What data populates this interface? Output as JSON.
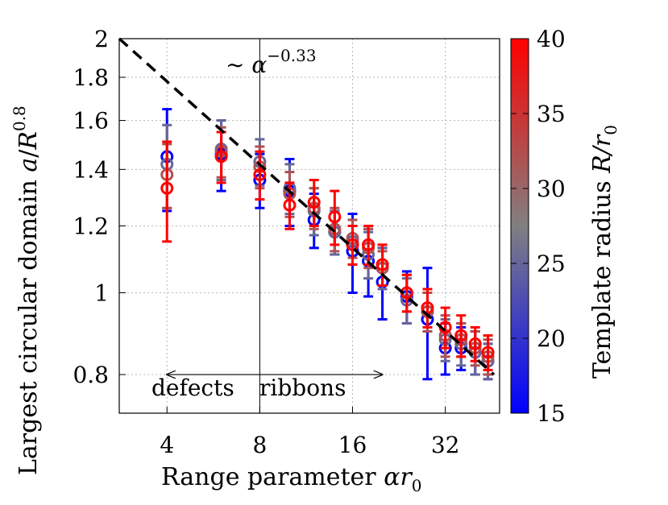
{
  "chart_data": {
    "type": "scatter",
    "xlabel": "Range parameter αr₀",
    "ylabel": "Largest circular domain a/R^0.8",
    "x_scale": "log2",
    "y_scale": "log",
    "xlim": [
      2.8,
      48
    ],
    "ylim": [
      0.72,
      2.0
    ],
    "xticks": [
      4,
      8,
      16,
      32
    ],
    "yticks": [
      0.8,
      1,
      1.2,
      1.4,
      1.6,
      1.8,
      2
    ],
    "grid": true,
    "fit_line": {
      "label": "~ α^−0.33",
      "exponent": -0.33,
      "x": [
        2.8,
        46
      ],
      "y": [
        2.0,
        0.8
      ]
    },
    "vertical_line": {
      "x": 8
    },
    "regions": [
      {
        "label": "defects",
        "arrow_from": 8,
        "arrow_to": 4,
        "y": 0.8
      },
      {
        "label": "ribbons",
        "arrow_from": 8,
        "arrow_to": 20,
        "y": 0.8
      }
    ],
    "colorbar": {
      "label": "Template radius R/r₀",
      "min": 15,
      "max": 40,
      "ticks": [
        15,
        20,
        25,
        30,
        35,
        40
      ],
      "colors": [
        "#0000ff",
        "#808080",
        "#ff0000"
      ]
    },
    "series": [
      {
        "R": 15,
        "x": [
          4,
          6,
          8,
          10,
          12,
          14,
          16,
          18,
          20,
          24,
          28,
          32,
          36,
          40,
          44
        ],
        "y": [
          1.45,
          1.46,
          1.36,
          1.32,
          1.22,
          1.18,
          1.12,
          1.09,
          1.03,
          0.99,
          0.93,
          0.86,
          0.86,
          0.85,
          0.83
        ],
        "err": [
          0.2,
          0.14,
          0.1,
          0.12,
          0.09,
          0.07,
          0.12,
          0.1,
          0.1,
          0.07,
          0.14,
          0.06,
          0.05,
          0.05,
          0.04
        ]
      },
      {
        "R": 25,
        "x": [
          4,
          6,
          8,
          10,
          12,
          14,
          16,
          18,
          20,
          24,
          28,
          32,
          36,
          40,
          44
        ],
        "y": [
          1.42,
          1.48,
          1.43,
          1.33,
          1.25,
          1.18,
          1.15,
          1.11,
          1.07,
          0.98,
          0.95,
          0.88,
          0.87,
          0.85,
          0.83
        ],
        "err": [
          0.16,
          0.12,
          0.09,
          0.09,
          0.08,
          0.07,
          0.07,
          0.07,
          0.06,
          0.06,
          0.05,
          0.05,
          0.05,
          0.05,
          0.04
        ]
      },
      {
        "R": 32,
        "x": [
          4,
          6,
          8,
          10,
          12,
          14,
          16,
          18,
          20,
          24,
          28,
          32,
          36,
          40,
          44
        ],
        "y": [
          1.38,
          1.47,
          1.41,
          1.31,
          1.26,
          1.19,
          1.16,
          1.13,
          1.07,
          1.0,
          0.95,
          0.89,
          0.88,
          0.86,
          0.84
        ],
        "err": [
          0.12,
          0.1,
          0.08,
          0.08,
          0.07,
          0.07,
          0.06,
          0.06,
          0.05,
          0.05,
          0.05,
          0.05,
          0.04,
          0.04,
          0.04
        ]
      },
      {
        "R": 40,
        "x": [
          4,
          6,
          8,
          10,
          12,
          14,
          16,
          18,
          20,
          24,
          28,
          32,
          36,
          40,
          44
        ],
        "y": [
          1.33,
          1.45,
          1.38,
          1.27,
          1.28,
          1.23,
          1.14,
          1.14,
          1.08,
          1.0,
          0.96,
          0.91,
          0.89,
          0.87,
          0.85
        ],
        "err": [
          0.18,
          0.1,
          0.09,
          0.08,
          0.08,
          0.09,
          0.06,
          0.06,
          0.06,
          0.05,
          0.05,
          0.05,
          0.05,
          0.04,
          0.04
        ]
      }
    ]
  },
  "texts": {
    "ylabel_main": "Largest circular domain ",
    "ylabel_a": "a",
    "ylabel_slash": "/",
    "ylabel_R": "R",
    "ylabel_exp": "0.8",
    "xlabel_main": "Range parameter ",
    "xlabel_alpha": "αr",
    "xlabel_sub": "0",
    "fit_tilde": "∼ ",
    "fit_alpha": "α",
    "fit_exp": "−0.33",
    "defects": "defects",
    "ribbons": "ribbons",
    "cb_label_main": "Template radius ",
    "cb_label_R": "R/r",
    "cb_label_sub": "0"
  }
}
